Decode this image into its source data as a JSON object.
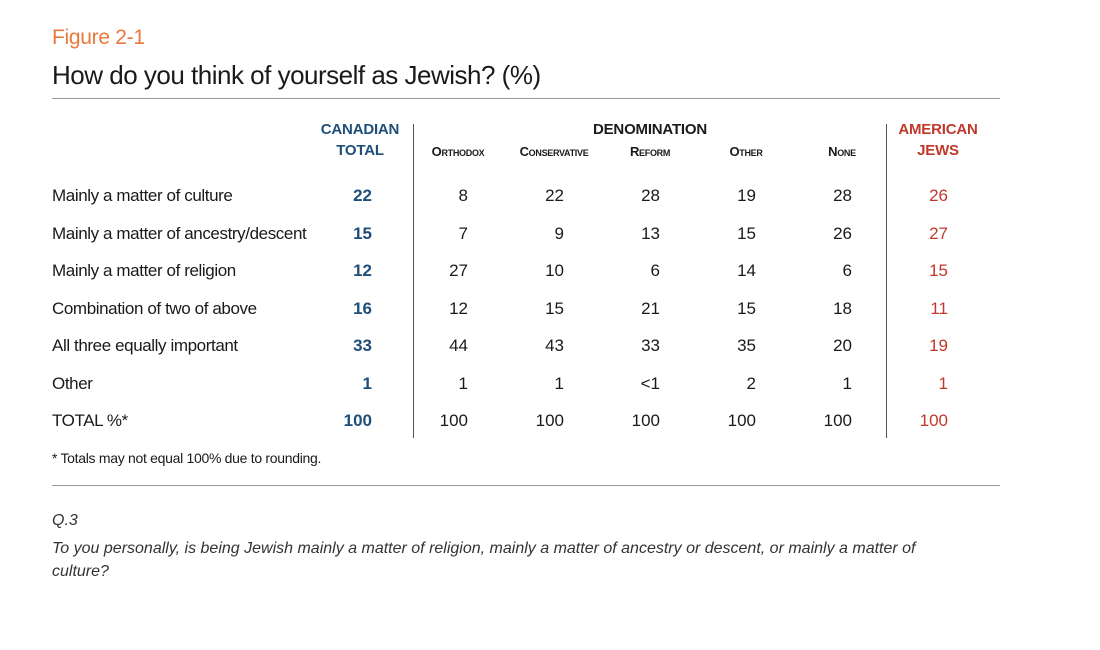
{
  "figure_label": "Figure 2-1",
  "title": "How do you think of yourself as Jewish? (%)",
  "colors": {
    "label_orange": "#e8783c",
    "canadian_blue": "#1f4e79",
    "american_red": "#c0392b"
  },
  "headers": {
    "canadian_line1": "CANADIAN",
    "canadian_line2": "TOTAL",
    "denomination": "DENOMINATION",
    "american_line1": "AMERICAN",
    "american_line2": "JEWS",
    "sub": [
      "Orthodox",
      "Conservative",
      "Reform",
      "Other",
      "None"
    ]
  },
  "chart_data": {
    "type": "table",
    "columns": [
      "Canadian Total",
      "Orthodox",
      "Conservative",
      "Reform",
      "Other",
      "None",
      "American Jews"
    ],
    "rows": [
      {
        "label": "Mainly a matter of culture",
        "values": [
          "22",
          "8",
          "22",
          "28",
          "19",
          "28",
          "26"
        ]
      },
      {
        "label": "Mainly a matter of ancestry/descent",
        "values": [
          "15",
          "7",
          "9",
          "13",
          "15",
          "26",
          "27"
        ]
      },
      {
        "label": "Mainly a matter of religion",
        "values": [
          "12",
          "27",
          "10",
          "6",
          "14",
          "6",
          "15"
        ]
      },
      {
        "label": "Combination of two of above",
        "values": [
          "16",
          "12",
          "15",
          "21",
          "15",
          "18",
          "11"
        ]
      },
      {
        "label": "All three equally important",
        "values": [
          "33",
          "44",
          "43",
          "33",
          "35",
          "20",
          "19"
        ]
      },
      {
        "label": "Other",
        "values": [
          "1",
          "1",
          "1",
          "<1",
          "2",
          "1",
          "1"
        ]
      },
      {
        "label": "TOTAL %*",
        "values": [
          "100",
          "100",
          "100",
          "100",
          "100",
          "100",
          "100"
        ]
      }
    ]
  },
  "footnote": "* Totals may not equal 100% due to rounding.",
  "question_number": "Q.3",
  "question_text": "To you personally, is being Jewish mainly a matter of religion, mainly a matter of ancestry or descent, or mainly a matter of culture?"
}
